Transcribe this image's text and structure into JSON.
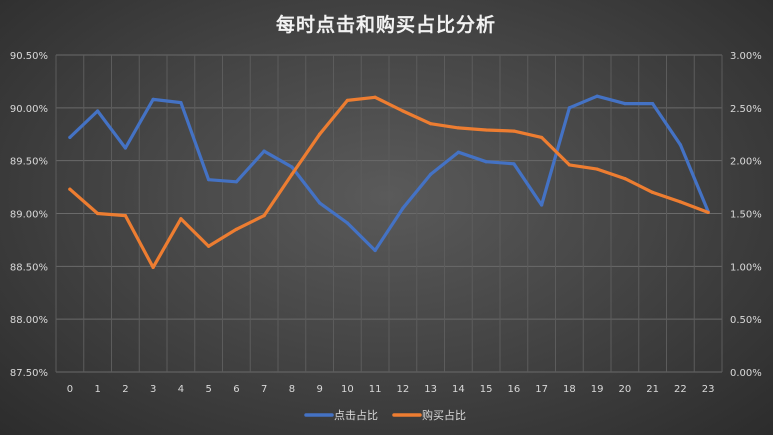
{
  "chart_data": {
    "type": "line",
    "title": "每时点击和购买占比分析",
    "xlabel": "",
    "ylabel": "",
    "x": [
      0,
      1,
      2,
      3,
      4,
      5,
      6,
      7,
      8,
      9,
      10,
      11,
      12,
      13,
      14,
      15,
      16,
      17,
      18,
      19,
      20,
      21,
      22,
      23
    ],
    "x_tick_labels": [
      "0",
      "1",
      "2",
      "3",
      "4",
      "5",
      "6",
      "7",
      "8",
      "9",
      "10",
      "11",
      "12",
      "13",
      "14",
      "15",
      "16",
      "17",
      "18",
      "19",
      "20",
      "21",
      "22",
      "23"
    ],
    "y_left": {
      "range": [
        87.5,
        90.5
      ],
      "ticks": [
        87.5,
        88.0,
        88.5,
        89.0,
        89.5,
        90.0,
        90.5
      ],
      "tick_labels": [
        "87.50%",
        "88.00%",
        "88.50%",
        "89.00%",
        "89.50%",
        "90.00%",
        "90.50%"
      ]
    },
    "y_right": {
      "range": [
        0,
        3
      ],
      "ticks": [
        0,
        0.5,
        1.0,
        1.5,
        2.0,
        2.5,
        3.0
      ],
      "tick_labels": [
        "0.00%",
        "0.50%",
        "1.00%",
        "1.50%",
        "2.00%",
        "2.50%",
        "3.00%"
      ]
    },
    "grid": "vertical and horizontal",
    "legend_position": "bottom",
    "series": [
      {
        "name": "点击占比",
        "axis": "left",
        "color": "#4472c4",
        "values": [
          89.72,
          89.97,
          89.62,
          90.08,
          90.05,
          89.32,
          89.3,
          89.59,
          89.44,
          89.1,
          88.91,
          88.65,
          89.05,
          89.37,
          89.58,
          89.49,
          89.47,
          89.08,
          90.0,
          90.11,
          90.04,
          90.04,
          89.65,
          89.02
        ]
      },
      {
        "name": "购买占比",
        "axis": "right",
        "color": "#ed7d31",
        "values": [
          1.73,
          1.5,
          1.48,
          0.99,
          1.45,
          1.19,
          1.35,
          1.48,
          1.87,
          2.25,
          2.57,
          2.6,
          2.47,
          2.35,
          2.31,
          2.29,
          2.28,
          2.22,
          1.96,
          1.92,
          1.83,
          1.7,
          1.61,
          1.51
        ]
      }
    ]
  }
}
